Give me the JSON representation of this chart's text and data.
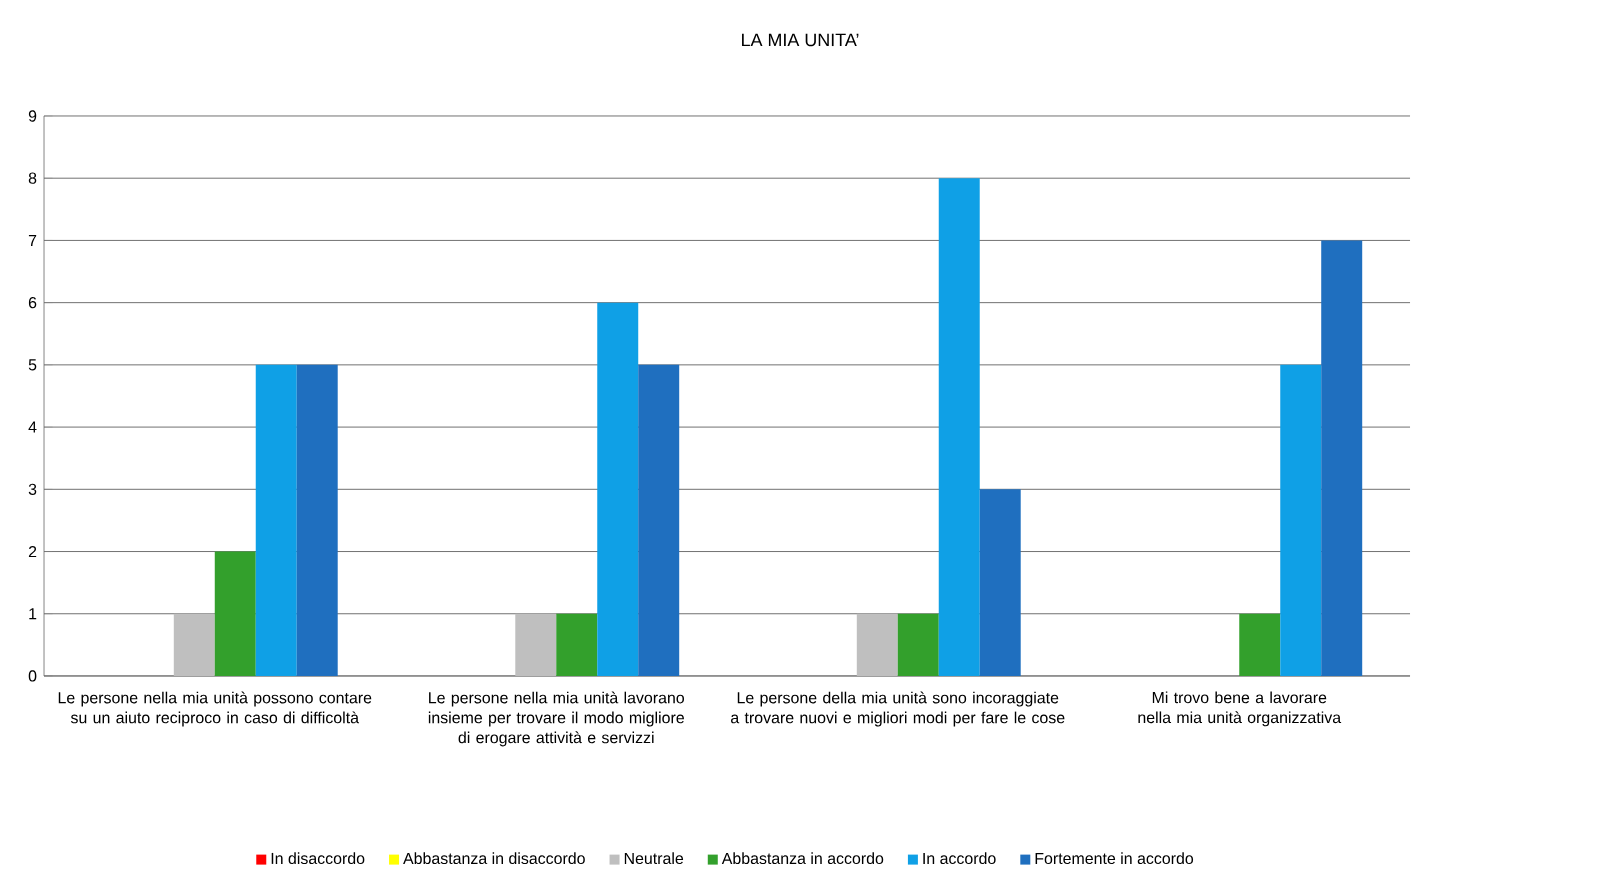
{
  "chart_data": {
    "type": "bar",
    "title": "LA MIA UNITA’",
    "categories": [
      "Le persone nella mia unità possono contare su un aiuto reciproco in caso di difficoltà",
      "Le persone nella mia unità lavorano insieme per trovare il modo migliore di erogare attività e servizzi",
      "Le persone della mia unità sono incoraggiate a trovare nuovi e migliori modi per fare le cose",
      "Mi trovo bene a lavorare nella mia unità organizzativa"
    ],
    "series": [
      {
        "name": "In disaccordo",
        "color": "#ff0000",
        "values": [
          0,
          0,
          0,
          0
        ]
      },
      {
        "name": "Abbastanza in disaccordo",
        "color": "#ffff00",
        "values": [
          0,
          0,
          0,
          0
        ]
      },
      {
        "name": "Neutrale",
        "color": "#bfbfbf",
        "values": [
          1,
          1,
          1,
          0
        ]
      },
      {
        "name": "Abbastanza in accordo",
        "color": "#33a02c",
        "values": [
          2,
          1,
          1,
          1
        ]
      },
      {
        "name": "In accordo",
        "color": "#0fa0e6",
        "values": [
          5,
          6,
          8,
          5
        ]
      },
      {
        "name": "Fortemente in accordo",
        "color": "#1f6fbf",
        "values": [
          5,
          5,
          3,
          7
        ]
      }
    ],
    "ylim": [
      0,
      9
    ],
    "yticks": [
      0,
      1,
      2,
      3,
      4,
      5,
      6,
      7,
      8,
      9
    ],
    "grid": "y",
    "legend": "bottom"
  }
}
